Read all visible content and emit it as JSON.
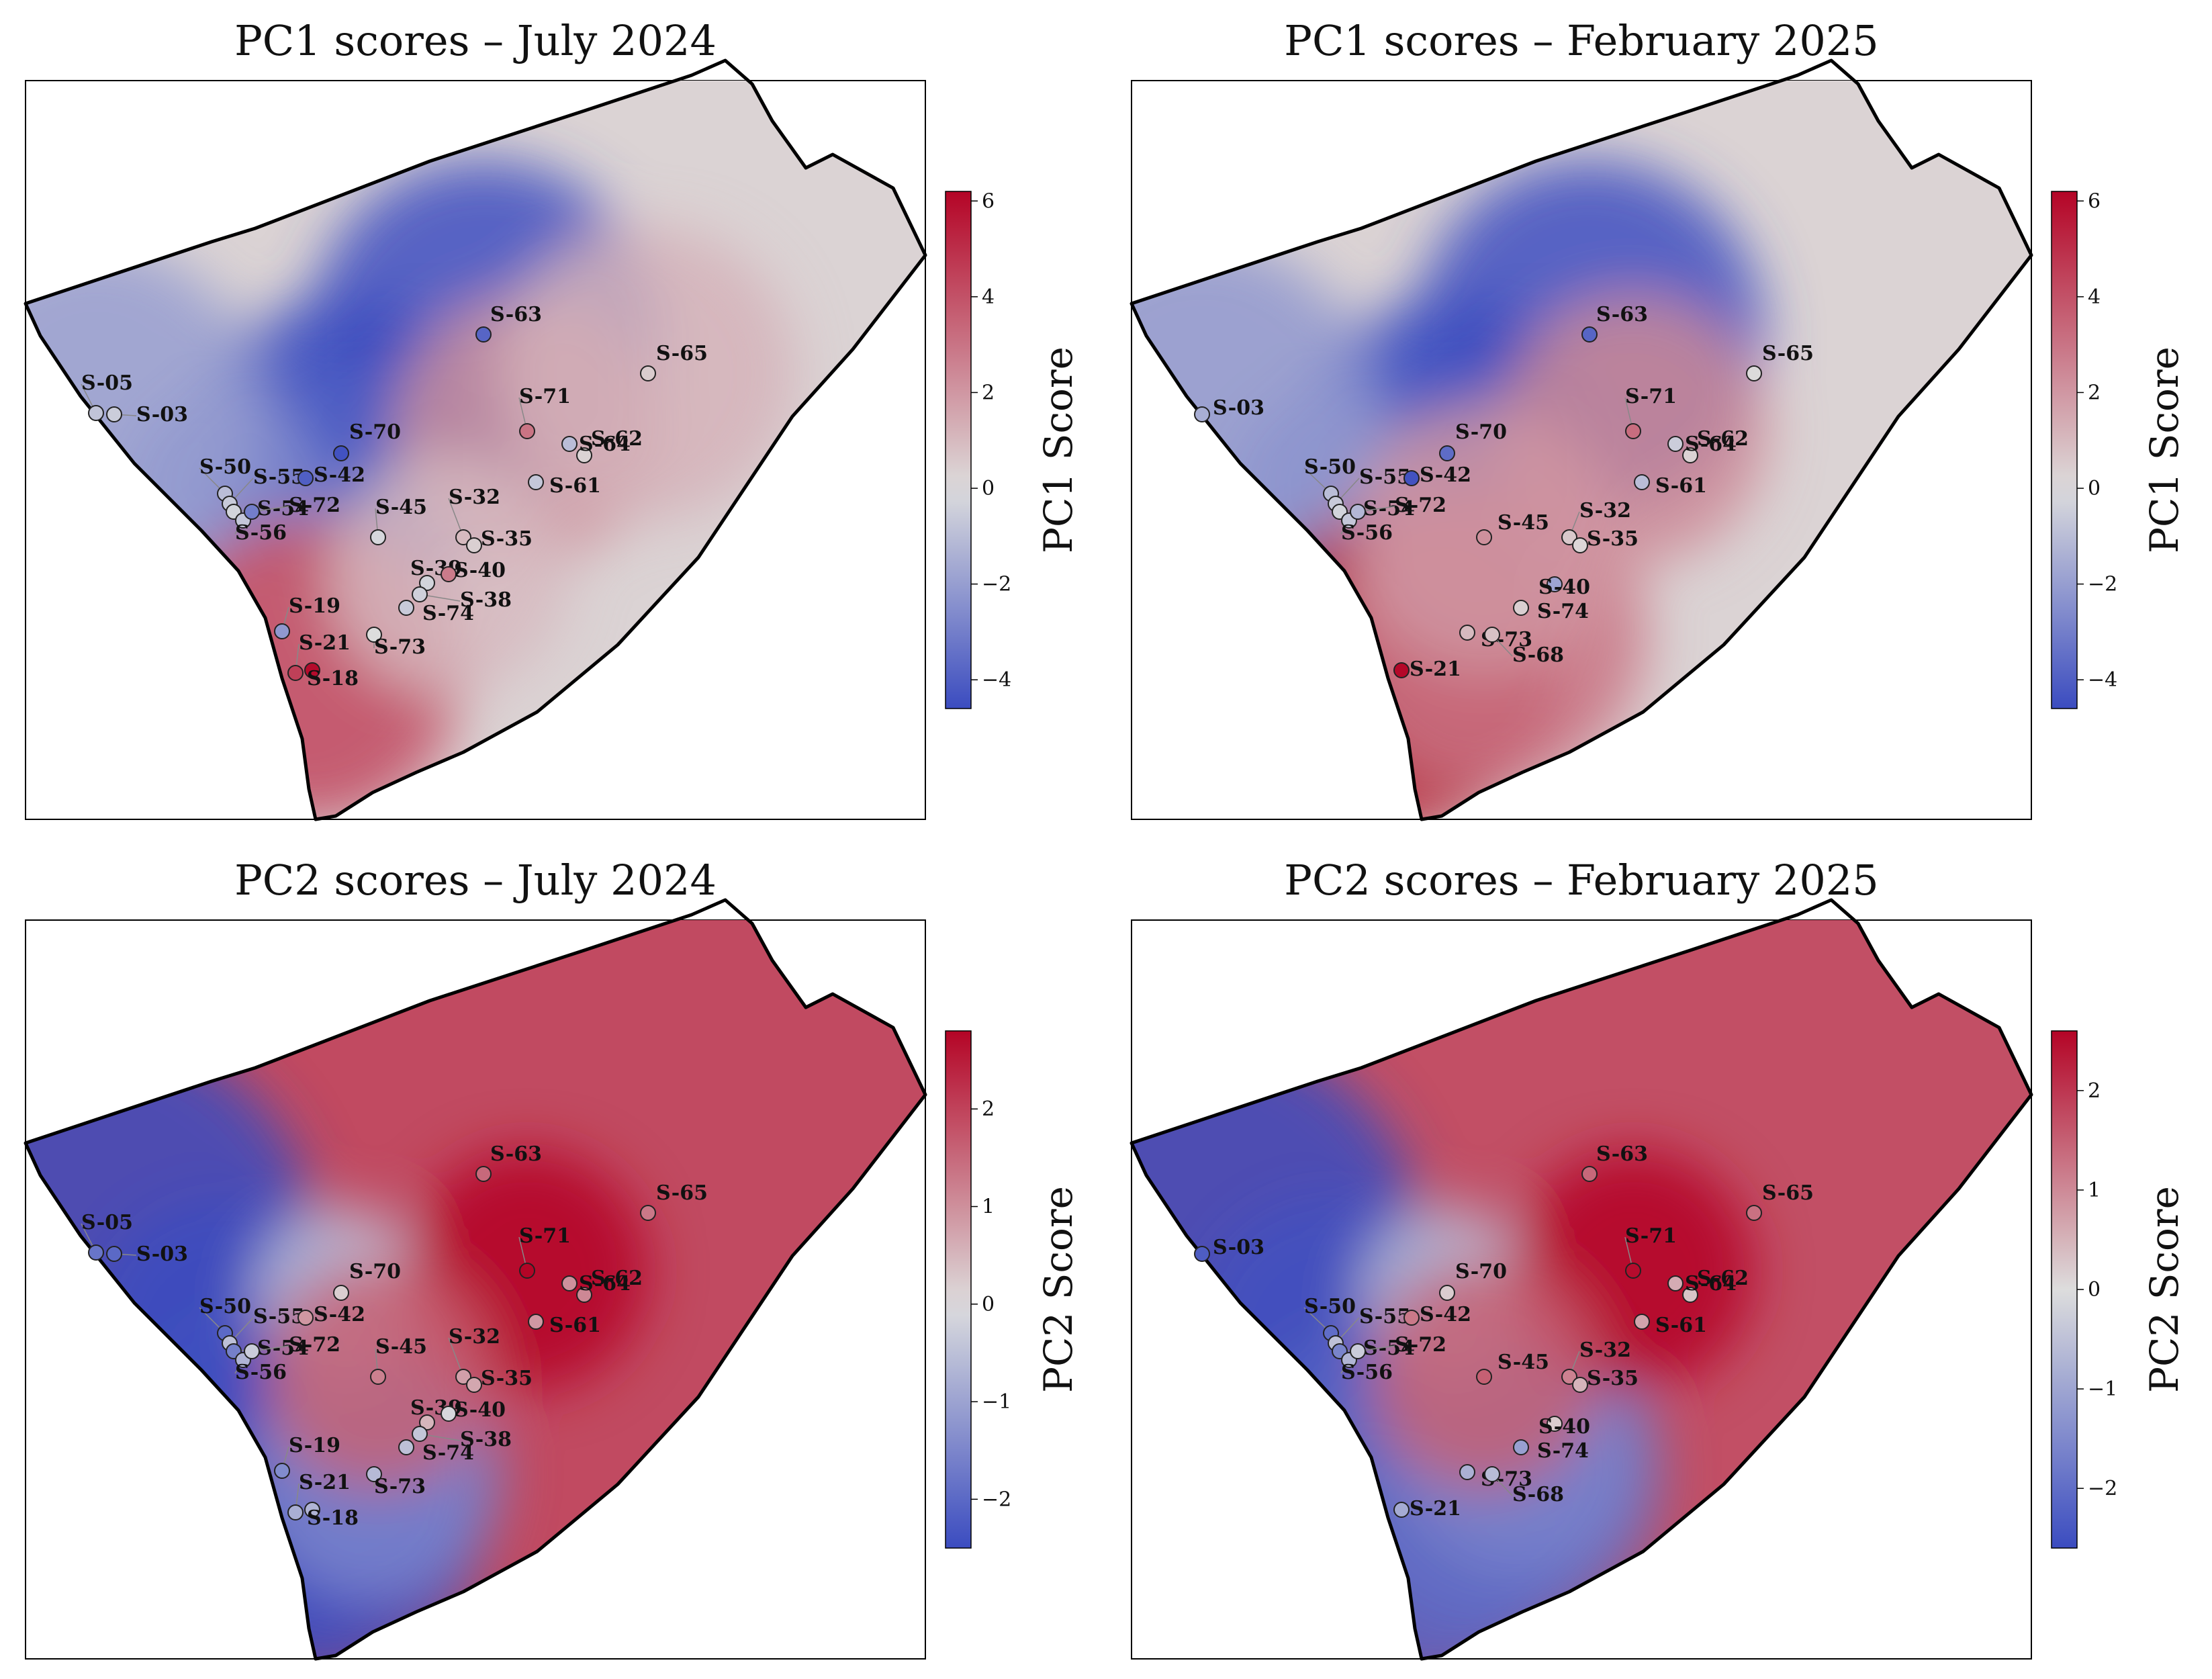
{
  "figure": {
    "colormap": "coolwarm",
    "colors": {
      "low": "#3b4cc0",
      "mid": "#dddddd",
      "high": "#b40426"
    },
    "panels": [
      {
        "id": "pc1-jul",
        "title": "PC1 scores – July 2024",
        "colorbar": {
          "label": "PC1 Score",
          "min": -4.6,
          "max": 6.2,
          "ticks": [
            "6",
            "4",
            "2",
            "0",
            "−2",
            "−4"
          ],
          "tick_values": [
            6,
            4,
            2,
            0,
            -2,
            -4
          ]
        },
        "background": 0.3,
        "field": [
          {
            "site": "S-63",
            "value": -4.5,
            "r": 260
          },
          {
            "site": "S-70",
            "value": -5.0,
            "r": 230
          },
          {
            "site": "S-42",
            "value": -4.0,
            "r": 180
          },
          {
            "site": "S-50",
            "value": -2.6,
            "r": 150
          },
          {
            "site": "S-05",
            "value": -2.0,
            "r": 250
          },
          {
            "site": "S-21",
            "value": 4.8,
            "r": 210
          },
          {
            "site": "S-18",
            "value": 3.6,
            "r": 230
          },
          {
            "site": "S-71",
            "value": 2.2,
            "r": 200
          },
          {
            "site": "S-65",
            "value": 1.2,
            "r": 220
          },
          {
            "site": "S-40",
            "value": 1.0,
            "r": 180
          }
        ],
        "stations": [
          {
            "id": "S-05",
            "value": -0.8,
            "label": "S-05"
          },
          {
            "id": "S-03",
            "value": -0.5,
            "label": "S-03"
          },
          {
            "id": "S-50",
            "value": -1.0,
            "label": "S-50"
          },
          {
            "id": "S-55",
            "value": -0.6,
            "label": "S-55"
          },
          {
            "id": "S-42",
            "value": -4.0,
            "label": "S-42"
          },
          {
            "id": "S-70",
            "value": -4.4,
            "label": "S-70"
          },
          {
            "id": "S-54",
            "value": -0.3,
            "label": "S-54"
          },
          {
            "id": "S-56",
            "value": -0.7,
            "label": "S-56"
          },
          {
            "id": "S-72",
            "value": -3.0,
            "label": "S-72"
          },
          {
            "id": "S-45",
            "value": -0.2,
            "label": "S-45"
          },
          {
            "id": "S-63",
            "value": -3.8,
            "label": "S-63"
          },
          {
            "id": "S-65",
            "value": 0.5,
            "label": "S-65"
          },
          {
            "id": "S-71",
            "value": 3.0,
            "label": "S-71"
          },
          {
            "id": "S-62",
            "value": 0.3,
            "label": "S-62"
          },
          {
            "id": "S-64",
            "value": -1.0,
            "label": "S-64"
          },
          {
            "id": "S-61",
            "value": -0.7,
            "label": "S-61"
          },
          {
            "id": "S-32",
            "value": 1.0,
            "label": "S-32"
          },
          {
            "id": "S-35",
            "value": 0.4,
            "label": "S-35"
          },
          {
            "id": "S-39",
            "value": -0.3,
            "label": "S-39"
          },
          {
            "id": "S-40",
            "value": 2.8,
            "label": "S-40"
          },
          {
            "id": "S-38",
            "value": -0.4,
            "label": "S-38"
          },
          {
            "id": "S-74",
            "value": -0.6,
            "label": "S-74"
          },
          {
            "id": "S-73",
            "value": 0.0,
            "label": "S-73"
          },
          {
            "id": "S-19",
            "value": -2.2,
            "label": "S-19"
          },
          {
            "id": "S-21",
            "value": 4.5,
            "label": "S-21"
          },
          {
            "id": "S-18",
            "value": 6.0,
            "label": "S-18"
          }
        ]
      },
      {
        "id": "pc1-feb",
        "title": "PC1 scores – February 2025",
        "colorbar": {
          "label": "PC1 Score",
          "min": -4.6,
          "max": 6.2,
          "ticks": [
            "6",
            "4",
            "2",
            "0",
            "−2",
            "−4"
          ],
          "tick_values": [
            6,
            4,
            2,
            0,
            -2,
            -4
          ]
        },
        "background": 0.3,
        "field": [
          {
            "site": "S-63",
            "value": -4.5,
            "r": 260
          },
          {
            "site": "S-70",
            "value": -5.0,
            "r": 230
          },
          {
            "site": "S-42",
            "value": -4.2,
            "r": 190
          },
          {
            "site": "S-50",
            "value": -2.6,
            "r": 150
          },
          {
            "site": "S-03",
            "value": -2.2,
            "r": 260
          },
          {
            "site": "S-21",
            "value": 6.0,
            "r": 240
          },
          {
            "site": "S-68",
            "value": 3.0,
            "r": 230
          },
          {
            "site": "S-71",
            "value": 2.4,
            "r": 200
          },
          {
            "site": "S-45",
            "value": 2.0,
            "r": 200
          }
        ],
        "stations": [
          {
            "id": "S-03",
            "value": -1.5,
            "label": "S-03"
          },
          {
            "id": "S-50",
            "value": -1.0,
            "label": "S-50"
          },
          {
            "id": "S-55",
            "value": -0.6,
            "label": "S-55"
          },
          {
            "id": "S-42",
            "value": -4.4,
            "label": "S-42"
          },
          {
            "id": "S-70",
            "value": -3.6,
            "label": "S-70"
          },
          {
            "id": "S-54",
            "value": -0.3,
            "label": "S-54"
          },
          {
            "id": "S-56",
            "value": -0.7,
            "label": "S-56"
          },
          {
            "id": "S-72",
            "value": -1.2,
            "label": "S-72"
          },
          {
            "id": "S-45",
            "value": 2.2,
            "label": "S-45"
          },
          {
            "id": "S-63",
            "value": -3.8,
            "label": "S-63"
          },
          {
            "id": "S-65",
            "value": 0.1,
            "label": "S-65"
          },
          {
            "id": "S-71",
            "value": 3.2,
            "label": "S-71"
          },
          {
            "id": "S-62",
            "value": 0.3,
            "label": "S-62"
          },
          {
            "id": "S-64",
            "value": -0.5,
            "label": "S-64"
          },
          {
            "id": "S-61",
            "value": -1.0,
            "label": "S-61"
          },
          {
            "id": "S-32",
            "value": 0.6,
            "label": "S-32"
          },
          {
            "id": "S-35",
            "value": 0.2,
            "label": "S-35"
          },
          {
            "id": "S-40",
            "value": -1.8,
            "label": "S-40"
          },
          {
            "id": "S-74",
            "value": 0.4,
            "label": "S-74"
          },
          {
            "id": "S-73",
            "value": 1.0,
            "label": "S-73"
          },
          {
            "id": "S-21",
            "value": 6.1,
            "label": "S-21"
          },
          {
            "id": "S-68",
            "value": 0.8,
            "label": "S-68"
          }
        ]
      },
      {
        "id": "pc2-jul",
        "title": "PC2 scores – July 2024",
        "colorbar": {
          "label": "PC2 Score",
          "min": -2.5,
          "max": 2.8,
          "ticks": [
            "2",
            "1",
            "0",
            "−1",
            "−2"
          ],
          "tick_values": [
            2,
            1,
            0,
            -1,
            -2
          ]
        },
        "background": 1.9,
        "field": [
          {
            "site": "S-05",
            "value": -5.0,
            "r": 330
          },
          {
            "site": "S-50",
            "value": -2.5,
            "r": 200
          },
          {
            "site": "S-19",
            "value": -2.4,
            "r": 250
          },
          {
            "site": "S-18",
            "value": -2.6,
            "r": 260
          },
          {
            "site": "S-73",
            "value": -1.5,
            "r": 190
          },
          {
            "site": "S-70",
            "value": -0.5,
            "r": 130
          },
          {
            "site": "S-71",
            "value": 3.0,
            "r": 180
          },
          {
            "site": "S-45",
            "value": 1.6,
            "r": 170
          }
        ],
        "stations": [
          {
            "id": "S-05",
            "value": -1.8,
            "label": "S-05"
          },
          {
            "id": "S-03",
            "value": -2.0,
            "label": "S-03"
          },
          {
            "id": "S-50",
            "value": -2.0,
            "label": "S-50"
          },
          {
            "id": "S-55",
            "value": -0.5,
            "label": "S-55"
          },
          {
            "id": "S-42",
            "value": 0.9,
            "label": "S-42"
          },
          {
            "id": "S-70",
            "value": 0.2,
            "label": "S-70"
          },
          {
            "id": "S-54",
            "value": -1.6,
            "label": "S-54"
          },
          {
            "id": "S-56",
            "value": -0.7,
            "label": "S-56"
          },
          {
            "id": "S-72",
            "value": -0.3,
            "label": "S-72"
          },
          {
            "id": "S-45",
            "value": 1.2,
            "label": "S-45"
          },
          {
            "id": "S-63",
            "value": 1.5,
            "label": "S-63"
          },
          {
            "id": "S-65",
            "value": 1.3,
            "label": "S-65"
          },
          {
            "id": "S-71",
            "value": 2.8,
            "label": "S-71"
          },
          {
            "id": "S-62",
            "value": 1.1,
            "label": "S-62"
          },
          {
            "id": "S-64",
            "value": 1.0,
            "label": "S-64"
          },
          {
            "id": "S-61",
            "value": 0.9,
            "label": "S-61"
          },
          {
            "id": "S-32",
            "value": 0.8,
            "label": "S-32"
          },
          {
            "id": "S-35",
            "value": 0.7,
            "label": "S-35"
          },
          {
            "id": "S-39",
            "value": 0.5,
            "label": "S-39"
          },
          {
            "id": "S-40",
            "value": -0.1,
            "label": "S-40"
          },
          {
            "id": "S-38",
            "value": -0.4,
            "label": "S-38"
          },
          {
            "id": "S-74",
            "value": -0.5,
            "label": "S-74"
          },
          {
            "id": "S-73",
            "value": -0.6,
            "label": "S-73"
          },
          {
            "id": "S-19",
            "value": -1.4,
            "label": "S-19"
          },
          {
            "id": "S-21",
            "value": -0.8,
            "label": "S-21"
          },
          {
            "id": "S-18",
            "value": -0.7,
            "label": "S-18"
          }
        ]
      },
      {
        "id": "pc2-feb",
        "title": "PC2 scores – February 2025",
        "colorbar": {
          "label": "PC2 Score",
          "min": -2.6,
          "max": 2.6,
          "ticks": [
            "2",
            "1",
            "0",
            "−1",
            "−2"
          ],
          "tick_values": [
            2,
            1,
            0,
            -1,
            -2
          ]
        },
        "background": 1.7,
        "field": [
          {
            "site": "S-03",
            "value": -5.0,
            "r": 330
          },
          {
            "site": "S-50",
            "value": -2.5,
            "r": 200
          },
          {
            "site": "S-21",
            "value": -2.2,
            "r": 280
          },
          {
            "site": "S-68",
            "value": -2.0,
            "r": 250
          },
          {
            "site": "S-74",
            "value": -1.6,
            "r": 190
          },
          {
            "site": "S-70",
            "value": -0.6,
            "r": 130
          },
          {
            "site": "S-71",
            "value": 2.8,
            "r": 180
          },
          {
            "site": "S-45",
            "value": 1.5,
            "r": 170
          }
        ],
        "stations": [
          {
            "id": "S-03",
            "value": -2.3,
            "label": "S-03"
          },
          {
            "id": "S-50",
            "value": -2.0,
            "label": "S-50"
          },
          {
            "id": "S-55",
            "value": -0.5,
            "label": "S-55"
          },
          {
            "id": "S-42",
            "value": 1.2,
            "label": "S-42"
          },
          {
            "id": "S-70",
            "value": 0.2,
            "label": "S-70"
          },
          {
            "id": "S-54",
            "value": -1.6,
            "label": "S-54"
          },
          {
            "id": "S-56",
            "value": -0.7,
            "label": "S-56"
          },
          {
            "id": "S-72",
            "value": -0.3,
            "label": "S-72"
          },
          {
            "id": "S-45",
            "value": 1.5,
            "label": "S-45"
          },
          {
            "id": "S-63",
            "value": 1.4,
            "label": "S-63"
          },
          {
            "id": "S-65",
            "value": 1.3,
            "label": "S-65"
          },
          {
            "id": "S-71",
            "value": 2.5,
            "label": "S-71"
          },
          {
            "id": "S-62",
            "value": 0.3,
            "label": "S-62"
          },
          {
            "id": "S-64",
            "value": 0.6,
            "label": "S-64"
          },
          {
            "id": "S-61",
            "value": 0.7,
            "label": "S-61"
          },
          {
            "id": "S-32",
            "value": 1.1,
            "label": "S-32"
          },
          {
            "id": "S-35",
            "value": 0.5,
            "label": "S-35"
          },
          {
            "id": "S-40",
            "value": 0.2,
            "label": "S-40"
          },
          {
            "id": "S-74",
            "value": -1.1,
            "label": "S-74"
          },
          {
            "id": "S-73",
            "value": -0.8,
            "label": "S-73"
          },
          {
            "id": "S-21",
            "value": -0.9,
            "label": "S-21"
          },
          {
            "id": "S-68",
            "value": -0.6,
            "label": "S-68"
          }
        ]
      }
    ]
  }
}
